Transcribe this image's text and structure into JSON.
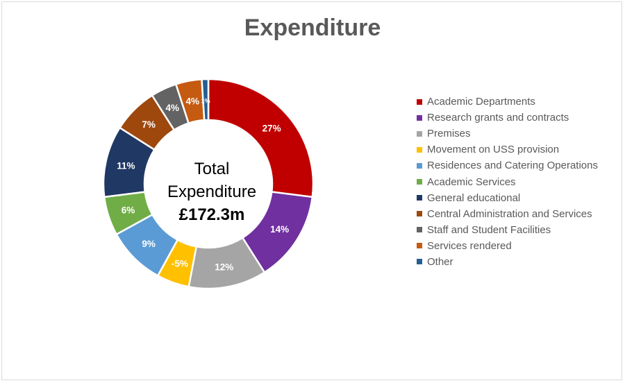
{
  "chart_data": {
    "type": "pie",
    "title": "Expenditure",
    "center_text": {
      "line1": "Total",
      "line2": "Expenditure",
      "line3": "£172.3m"
    },
    "legend_position": "right",
    "slices": [
      {
        "name": "Academic Departments",
        "value": 27,
        "label": "27%",
        "color": "#C00000"
      },
      {
        "name": "Research grants and contracts",
        "value": 14,
        "label": "14%",
        "color": "#7030A0"
      },
      {
        "name": "Premises",
        "value": 12,
        "label": "12%",
        "color": "#A5A5A5"
      },
      {
        "name": "Movement on USS provision",
        "value": 5,
        "label": "-5%",
        "color": "#FFC000"
      },
      {
        "name": "Residences and Catering Operations",
        "value": 9,
        "label": "9%",
        "color": "#5B9BD5"
      },
      {
        "name": "Academic Services",
        "value": 6,
        "label": "6%",
        "color": "#70AD47"
      },
      {
        "name": "General educational",
        "value": 11,
        "label": "11%",
        "color": "#203864"
      },
      {
        "name": "Central Administration and Services",
        "value": 7,
        "label": "7%",
        "color": "#9E480E"
      },
      {
        "name": "Staff and Student Facilities",
        "value": 4,
        "label": "4%",
        "color": "#636363"
      },
      {
        "name": "Services rendered",
        "value": 4,
        "label": "4%",
        "color": "#C55A11"
      },
      {
        "name": "Other",
        "value": 1,
        "label": "1%",
        "color": "#255E91"
      }
    ]
  }
}
